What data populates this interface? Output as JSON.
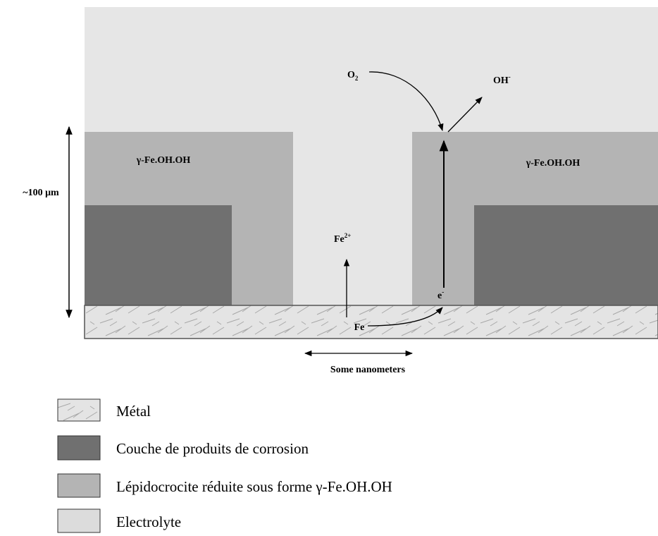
{
  "diagram": {
    "layer_labels": {
      "left": "γ-Fe.OH.OH",
      "right": "γ-Fe.OH.OH"
    },
    "thickness_label": "~100 μm",
    "oxygen": {
      "base": "O",
      "sub": "2"
    },
    "hydroxide": {
      "base": "OH",
      "sup": "-"
    },
    "ferrous_ion": {
      "base": "Fe",
      "sup": "2+"
    },
    "electron": {
      "base": "e",
      "sup": "-"
    },
    "iron": "Fe",
    "gap_label": "Some nanometers"
  },
  "legend": [
    {
      "label": "Métal"
    },
    {
      "label": "Couche de produits de corrosion"
    },
    {
      "label": "Lépidocrocite réduite sous forme γ-Fe.OH.OH"
    },
    {
      "label": "Electrolyte"
    }
  ]
}
